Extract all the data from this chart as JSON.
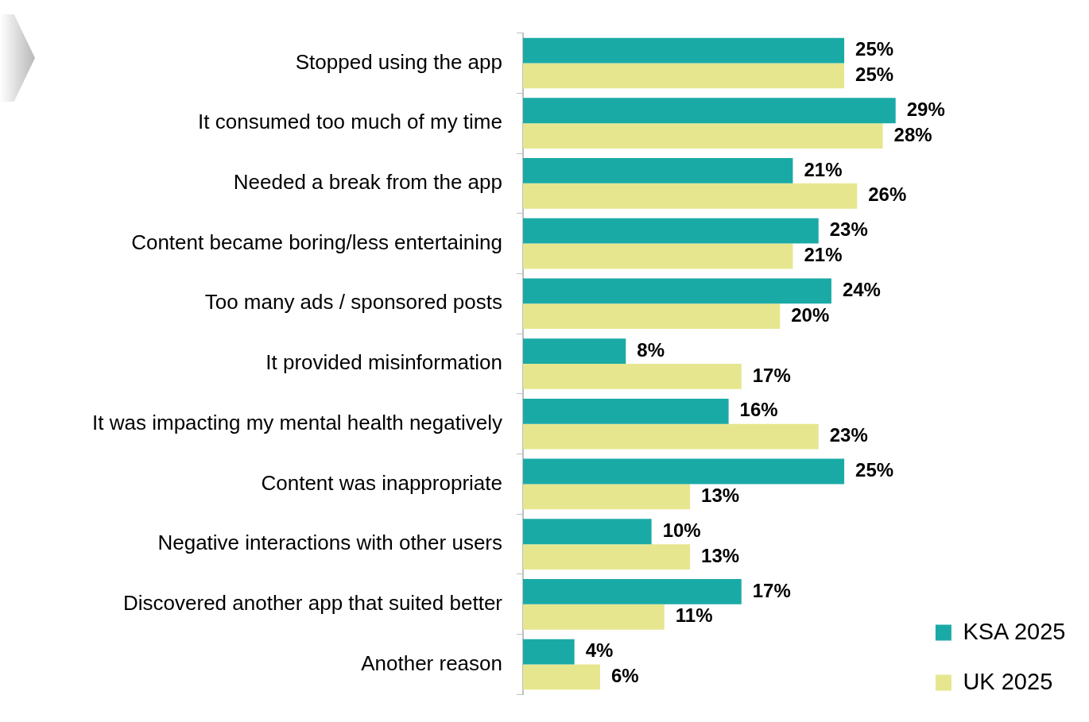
{
  "chart_data": {
    "type": "bar",
    "orientation": "horizontal",
    "categories": [
      "Stopped using the app",
      "It consumed too much of my time",
      "Needed a break from the app",
      "Content became boring/less entertaining",
      "Too many ads / sponsored posts",
      "It provided misinformation",
      "It was impacting my mental health negatively",
      "Content was inappropriate",
      "Negative interactions with other users",
      "Discovered another app that suited better",
      "Another reason"
    ],
    "series": [
      {
        "name": "KSA 2025",
        "color": "#1aaaa6",
        "values": [
          25,
          29,
          21,
          23,
          24,
          8,
          16,
          25,
          10,
          17,
          4
        ],
        "value_labels": [
          "25%",
          "29%",
          "21%",
          "23%",
          "24%",
          "8%",
          "16%",
          "25%",
          "10%",
          "17%",
          "4%"
        ]
      },
      {
        "name": "UK 2025",
        "color": "#e6e68f",
        "values": [
          25,
          28,
          26,
          21,
          20,
          17,
          23,
          13,
          13,
          11,
          6
        ],
        "value_labels": [
          "25%",
          "28%",
          "26%",
          "21%",
          "20%",
          "17%",
          "23%",
          "13%",
          "13%",
          "11%",
          "6%"
        ]
      }
    ],
    "legend": "bottom right",
    "tick_labels": "y"
  }
}
